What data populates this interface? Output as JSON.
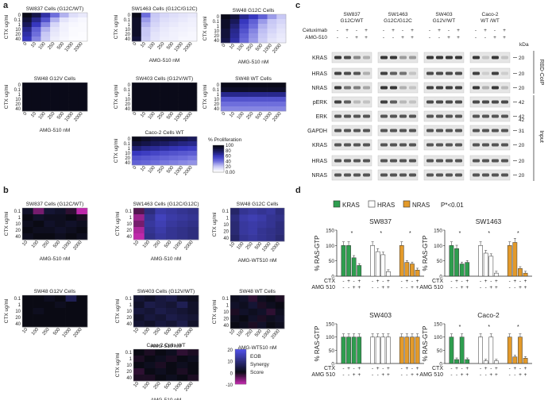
{
  "panel_letters": {
    "a": "a",
    "b": "b",
    "c": "c",
    "d": "d"
  },
  "panel_a": {
    "y_axis_label": "CTX ug/ml",
    "x_axis_label": "AMG-510 nM",
    "y_ticks": [
      "0",
      "0.1",
      "1",
      "10",
      "20",
      "40"
    ],
    "x_ticks": [
      "0",
      "10",
      "100",
      "250",
      "500",
      "1000",
      "2000"
    ],
    "colorbar_title": "% Proliferation",
    "colorbar_ticks": [
      "100",
      "80",
      "60",
      "40",
      "20",
      "0.00"
    ],
    "heatmaps": [
      {
        "title": "SW837 Cells (G12C/WT)",
        "values": [
          [
            100,
            85,
            65,
            40,
            25,
            12,
            8
          ],
          [
            90,
            70,
            50,
            25,
            10,
            5,
            3
          ],
          [
            80,
            60,
            35,
            15,
            5,
            3,
            2
          ],
          [
            70,
            45,
            25,
            10,
            5,
            2,
            2
          ],
          [
            65,
            40,
            20,
            8,
            4,
            2,
            1
          ],
          [
            60,
            35,
            18,
            6,
            3,
            1,
            1
          ]
        ]
      },
      {
        "title": "SW1463 Cells (G12C/G12C)",
        "values": [
          [
            100,
            40,
            20,
            15,
            12,
            10,
            8
          ],
          [
            95,
            30,
            18,
            12,
            10,
            8,
            6
          ],
          [
            95,
            25,
            15,
            10,
            8,
            6,
            5
          ],
          [
            95,
            20,
            12,
            8,
            6,
            5,
            4
          ],
          [
            95,
            20,
            10,
            7,
            5,
            4,
            3
          ],
          [
            90,
            18,
            9,
            6,
            5,
            3,
            3
          ]
        ]
      },
      {
        "title": "SW48 G12C Cells",
        "values": [
          [
            100,
            90,
            70,
            60,
            45,
            30,
            20
          ],
          [
            95,
            80,
            60,
            45,
            30,
            20,
            15
          ],
          [
            95,
            75,
            55,
            40,
            25,
            18,
            12
          ],
          [
            90,
            70,
            50,
            35,
            22,
            15,
            10
          ],
          [
            90,
            68,
            45,
            32,
            20,
            12,
            8
          ],
          [
            85,
            65,
            42,
            30,
            18,
            10,
            7
          ]
        ]
      },
      {
        "title": "SW48 G12V Cells",
        "values": [
          [
            100,
            100,
            100,
            100,
            100,
            100,
            100
          ],
          [
            100,
            100,
            100,
            100,
            100,
            100,
            100
          ],
          [
            100,
            100,
            100,
            100,
            100,
            100,
            100
          ],
          [
            100,
            100,
            100,
            100,
            100,
            100,
            100
          ],
          [
            100,
            100,
            100,
            100,
            100,
            100,
            100
          ],
          [
            100,
            100,
            100,
            100,
            100,
            100,
            100
          ]
        ]
      },
      {
        "title": "SW403 Cells (G12V/WT)",
        "values": [
          [
            100,
            100,
            100,
            100,
            100,
            100,
            100
          ],
          [
            100,
            100,
            100,
            100,
            100,
            100,
            100
          ],
          [
            100,
            100,
            100,
            100,
            100,
            100,
            100
          ],
          [
            100,
            100,
            100,
            100,
            100,
            100,
            100
          ],
          [
            100,
            100,
            100,
            100,
            100,
            100,
            100
          ],
          [
            100,
            100,
            100,
            100,
            100,
            100,
            100
          ]
        ]
      },
      {
        "title": "SW48 WT Cells",
        "values": [
          [
            100,
            100,
            100,
            100,
            100,
            100,
            100
          ],
          [
            95,
            95,
            95,
            95,
            95,
            95,
            95
          ],
          [
            70,
            70,
            70,
            70,
            70,
            70,
            70
          ],
          [
            50,
            50,
            50,
            50,
            50,
            50,
            50
          ],
          [
            40,
            40,
            40,
            40,
            40,
            40,
            40
          ],
          [
            35,
            35,
            35,
            35,
            35,
            35,
            35
          ]
        ]
      },
      {
        "title": "Caco-2 Cells WT",
        "values": [
          [
            100,
            95,
            90,
            90,
            88,
            85,
            80
          ],
          [
            90,
            85,
            80,
            78,
            75,
            72,
            70
          ],
          [
            75,
            70,
            68,
            65,
            62,
            60,
            58
          ],
          [
            60,
            58,
            55,
            52,
            50,
            48,
            46
          ],
          [
            50,
            48,
            46,
            44,
            42,
            40,
            38
          ],
          [
            45,
            43,
            40,
            38,
            36,
            34,
            32
          ]
        ]
      }
    ]
  },
  "panel_b": {
    "y_axis_label": "CTX ug/ml",
    "x_axis_label_amg": "AMG-510 nM",
    "x_axis_label_wt": "AMG-WT510 nM",
    "y_ticks": [
      "0.1",
      "1",
      "10",
      "20",
      "40"
    ],
    "x_ticks": [
      "10",
      "100",
      "250",
      "500",
      "1000",
      "2000"
    ],
    "colorbar_ticks": [
      "20",
      "10",
      "0",
      "-10"
    ],
    "colorbar_label_1": "EOB",
    "colorbar_label_2": "Synergy",
    "colorbar_label_3": "Score",
    "heatmaps": [
      {
        "title": "SW837 Cells (G12C/WT)",
        "xlabel": "AMG-510 nM",
        "values": [
          [
            2,
            -6,
            3,
            2,
            -2,
            -12
          ],
          [
            0,
            2,
            1,
            1,
            0,
            -1
          ],
          [
            1,
            0,
            2,
            1,
            2,
            1
          ],
          [
            0,
            1,
            1,
            2,
            1,
            0
          ],
          [
            1,
            0,
            0,
            1,
            0,
            1
          ]
        ]
      },
      {
        "title": "SW1463 Cells (G12C/G12C)",
        "xlabel": "AMG-510 nM",
        "values": [
          [
            -4,
            10,
            14,
            13,
            12,
            11
          ],
          [
            -8,
            12,
            16,
            14,
            13,
            12
          ],
          [
            -6,
            13,
            15,
            13,
            12,
            11
          ],
          [
            -9,
            12,
            14,
            12,
            11,
            10
          ],
          [
            -10,
            11,
            13,
            12,
            11,
            10
          ]
        ]
      },
      {
        "title": "SW48 G12C Cells",
        "xlabel": "AMG-WT510 nM",
        "values": [
          [
            8,
            12,
            13,
            12,
            13,
            10
          ],
          [
            10,
            14,
            15,
            14,
            12,
            11
          ],
          [
            9,
            13,
            14,
            13,
            12,
            10
          ],
          [
            9,
            13,
            14,
            12,
            11,
            10
          ],
          [
            8,
            12,
            13,
            12,
            11,
            9
          ]
        ]
      },
      {
        "title": "SW48 G12V Cells",
        "xlabel": "",
        "values": [
          [
            0,
            0,
            1,
            0,
            6,
            0
          ],
          [
            0,
            0,
            0,
            1,
            0,
            0
          ],
          [
            0,
            1,
            0,
            0,
            0,
            0
          ],
          [
            0,
            0,
            0,
            0,
            0,
            0
          ],
          [
            0,
            0,
            0,
            0,
            0,
            0
          ]
        ]
      },
      {
        "title": "SW403 Cells (G12V/WT)",
        "xlabel": "AMG-510 nM",
        "values": [
          [
            3,
            2,
            4,
            5,
            2,
            1
          ],
          [
            2,
            5,
            4,
            3,
            6,
            2
          ],
          [
            4,
            3,
            5,
            4,
            3,
            2
          ],
          [
            2,
            4,
            3,
            5,
            4,
            3
          ],
          [
            3,
            2,
            4,
            3,
            5,
            2
          ]
        ]
      },
      {
        "title": "SW48 WT Cells",
        "xlabel": "AMG-WT510 nM",
        "values": [
          [
            1,
            2,
            -2,
            1,
            0,
            -1
          ],
          [
            2,
            1,
            3,
            -1,
            1,
            0
          ],
          [
            -1,
            2,
            1,
            2,
            -2,
            1
          ],
          [
            1,
            0,
            2,
            -1,
            1,
            2
          ],
          [
            0,
            1,
            -1,
            2,
            0,
            1
          ]
        ]
      },
      {
        "title": "Caco-2 Cells WT",
        "xlabel": "AMG-510 nM",
        "values": [
          [
            0,
            -1,
            0,
            1,
            -2,
            -1
          ],
          [
            -1,
            0,
            1,
            -1,
            0,
            1
          ],
          [
            0,
            1,
            -1,
            0,
            1,
            0
          ],
          [
            -2,
            0,
            1,
            0,
            -1,
            0
          ],
          [
            -1,
            -1,
            0,
            1,
            0,
            -1
          ]
        ]
      }
    ]
  },
  "panel_c": {
    "groups": [
      {
        "line1": "SW837",
        "line2": "G12C/WT"
      },
      {
        "line1": "SW1463",
        "line2": "G12C/G12C"
      },
      {
        "line1": "SW403",
        "line2": "G12V/WT"
      },
      {
        "line1": "Caco-2",
        "line2": "WT /WT"
      }
    ],
    "treat_rows": [
      {
        "label": "Cetuximab",
        "signs": [
          "-",
          "+",
          "-",
          "+"
        ]
      },
      {
        "label": "AMG-510",
        "signs": [
          "-",
          "-",
          "+",
          "+"
        ]
      }
    ],
    "kda_label": "kDa",
    "bands": [
      {
        "label": "KRAS",
        "kda": "20"
      },
      {
        "label": "HRAS",
        "kda": "20"
      },
      {
        "label": "NRAS",
        "kda": "20"
      },
      {
        "label": "pERK",
        "kda": "42"
      },
      {
        "label": "ERK",
        "kda": "42"
      },
      {
        "label": "GAPDH",
        "kda": "31"
      },
      {
        "label": "KRAS",
        "kda": "20"
      },
      {
        "label": "HRAS",
        "kda": "20"
      },
      {
        "label": "NRAS",
        "kda": "20"
      }
    ],
    "kda_extra": "42",
    "bracket_rbd": "RBD-CoIP",
    "bracket_input": "Input"
  },
  "panel_d": {
    "legend": [
      {
        "label": "KRAS",
        "color": "#2e9e4f"
      },
      {
        "label": "HRAS",
        "color": "#ffffff"
      },
      {
        "label": "NRAS",
        "color": "#e39a2a"
      }
    ],
    "pvalue_note": "P*<0.01",
    "ylabel": "% RAS-GTP",
    "y_ticks": [
      "0",
      "50",
      "100",
      "150"
    ],
    "row_labels": {
      "ctx": "CTX",
      "amg": "AMG 510"
    },
    "ctx_signs": [
      "-",
      "+",
      "-",
      "+"
    ],
    "amg_signs": [
      "-",
      "-",
      "+",
      "+"
    ],
    "star": "*",
    "charts": [
      {
        "title": "SW837",
        "values": {
          "KRAS": [
            100,
            100,
            60,
            35
          ],
          "HRAS": [
            100,
            80,
            70,
            15
          ],
          "NRAS": [
            100,
            45,
            40,
            20
          ]
        }
      },
      {
        "title": "SW1463",
        "values": {
          "KRAS": [
            100,
            90,
            40,
            45
          ],
          "HRAS": [
            100,
            75,
            65,
            10
          ],
          "NRAS": [
            100,
            110,
            25,
            10
          ]
        }
      },
      {
        "title": "SW403",
        "values": {
          "KRAS": [
            100,
            100,
            100,
            100
          ],
          "HRAS": [
            100,
            100,
            100,
            100
          ],
          "NRAS": [
            100,
            100,
            100,
            100
          ]
        }
      },
      {
        "title": "Caco-2",
        "values": {
          "KRAS": [
            100,
            15,
            100,
            15
          ],
          "HRAS": [
            100,
            10,
            100,
            10
          ],
          "NRAS": [
            100,
            25,
            100,
            20
          ]
        }
      }
    ]
  }
}
